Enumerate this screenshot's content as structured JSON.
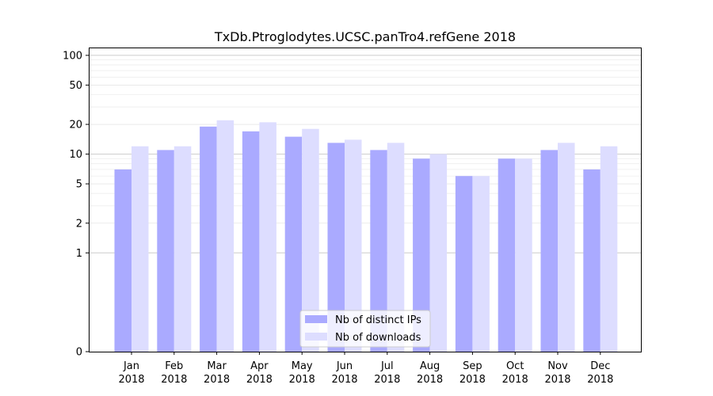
{
  "chart_data": {
    "type": "bar",
    "title": "TxDb.Ptroglodytes.UCSC.panTro4.refGene 2018",
    "xlabel": "",
    "ylabel": "",
    "yscale": "symlog",
    "ylim": [
      0,
      120
    ],
    "yticks": [
      0,
      1,
      2,
      5,
      10,
      20,
      50,
      100
    ],
    "categories": [
      [
        "Jan",
        "2018"
      ],
      [
        "Feb",
        "2018"
      ],
      [
        "Mar",
        "2018"
      ],
      [
        "Apr",
        "2018"
      ],
      [
        "May",
        "2018"
      ],
      [
        "Jun",
        "2018"
      ],
      [
        "Jul",
        "2018"
      ],
      [
        "Aug",
        "2018"
      ],
      [
        "Sep",
        "2018"
      ],
      [
        "Oct",
        "2018"
      ],
      [
        "Nov",
        "2018"
      ],
      [
        "Dec",
        "2018"
      ]
    ],
    "series": [
      {
        "name": "Nb of distinct IPs",
        "color": "#aaaaff",
        "values": [
          7,
          11,
          19,
          17,
          15,
          13,
          11,
          9,
          6,
          9,
          11,
          7
        ]
      },
      {
        "name": "Nb of downloads",
        "color": "#ddddff",
        "values": [
          12,
          12,
          22,
          21,
          18,
          14,
          13,
          10,
          6,
          9,
          13,
          12
        ]
      }
    ],
    "grid": true,
    "legend": "bottom-center"
  }
}
